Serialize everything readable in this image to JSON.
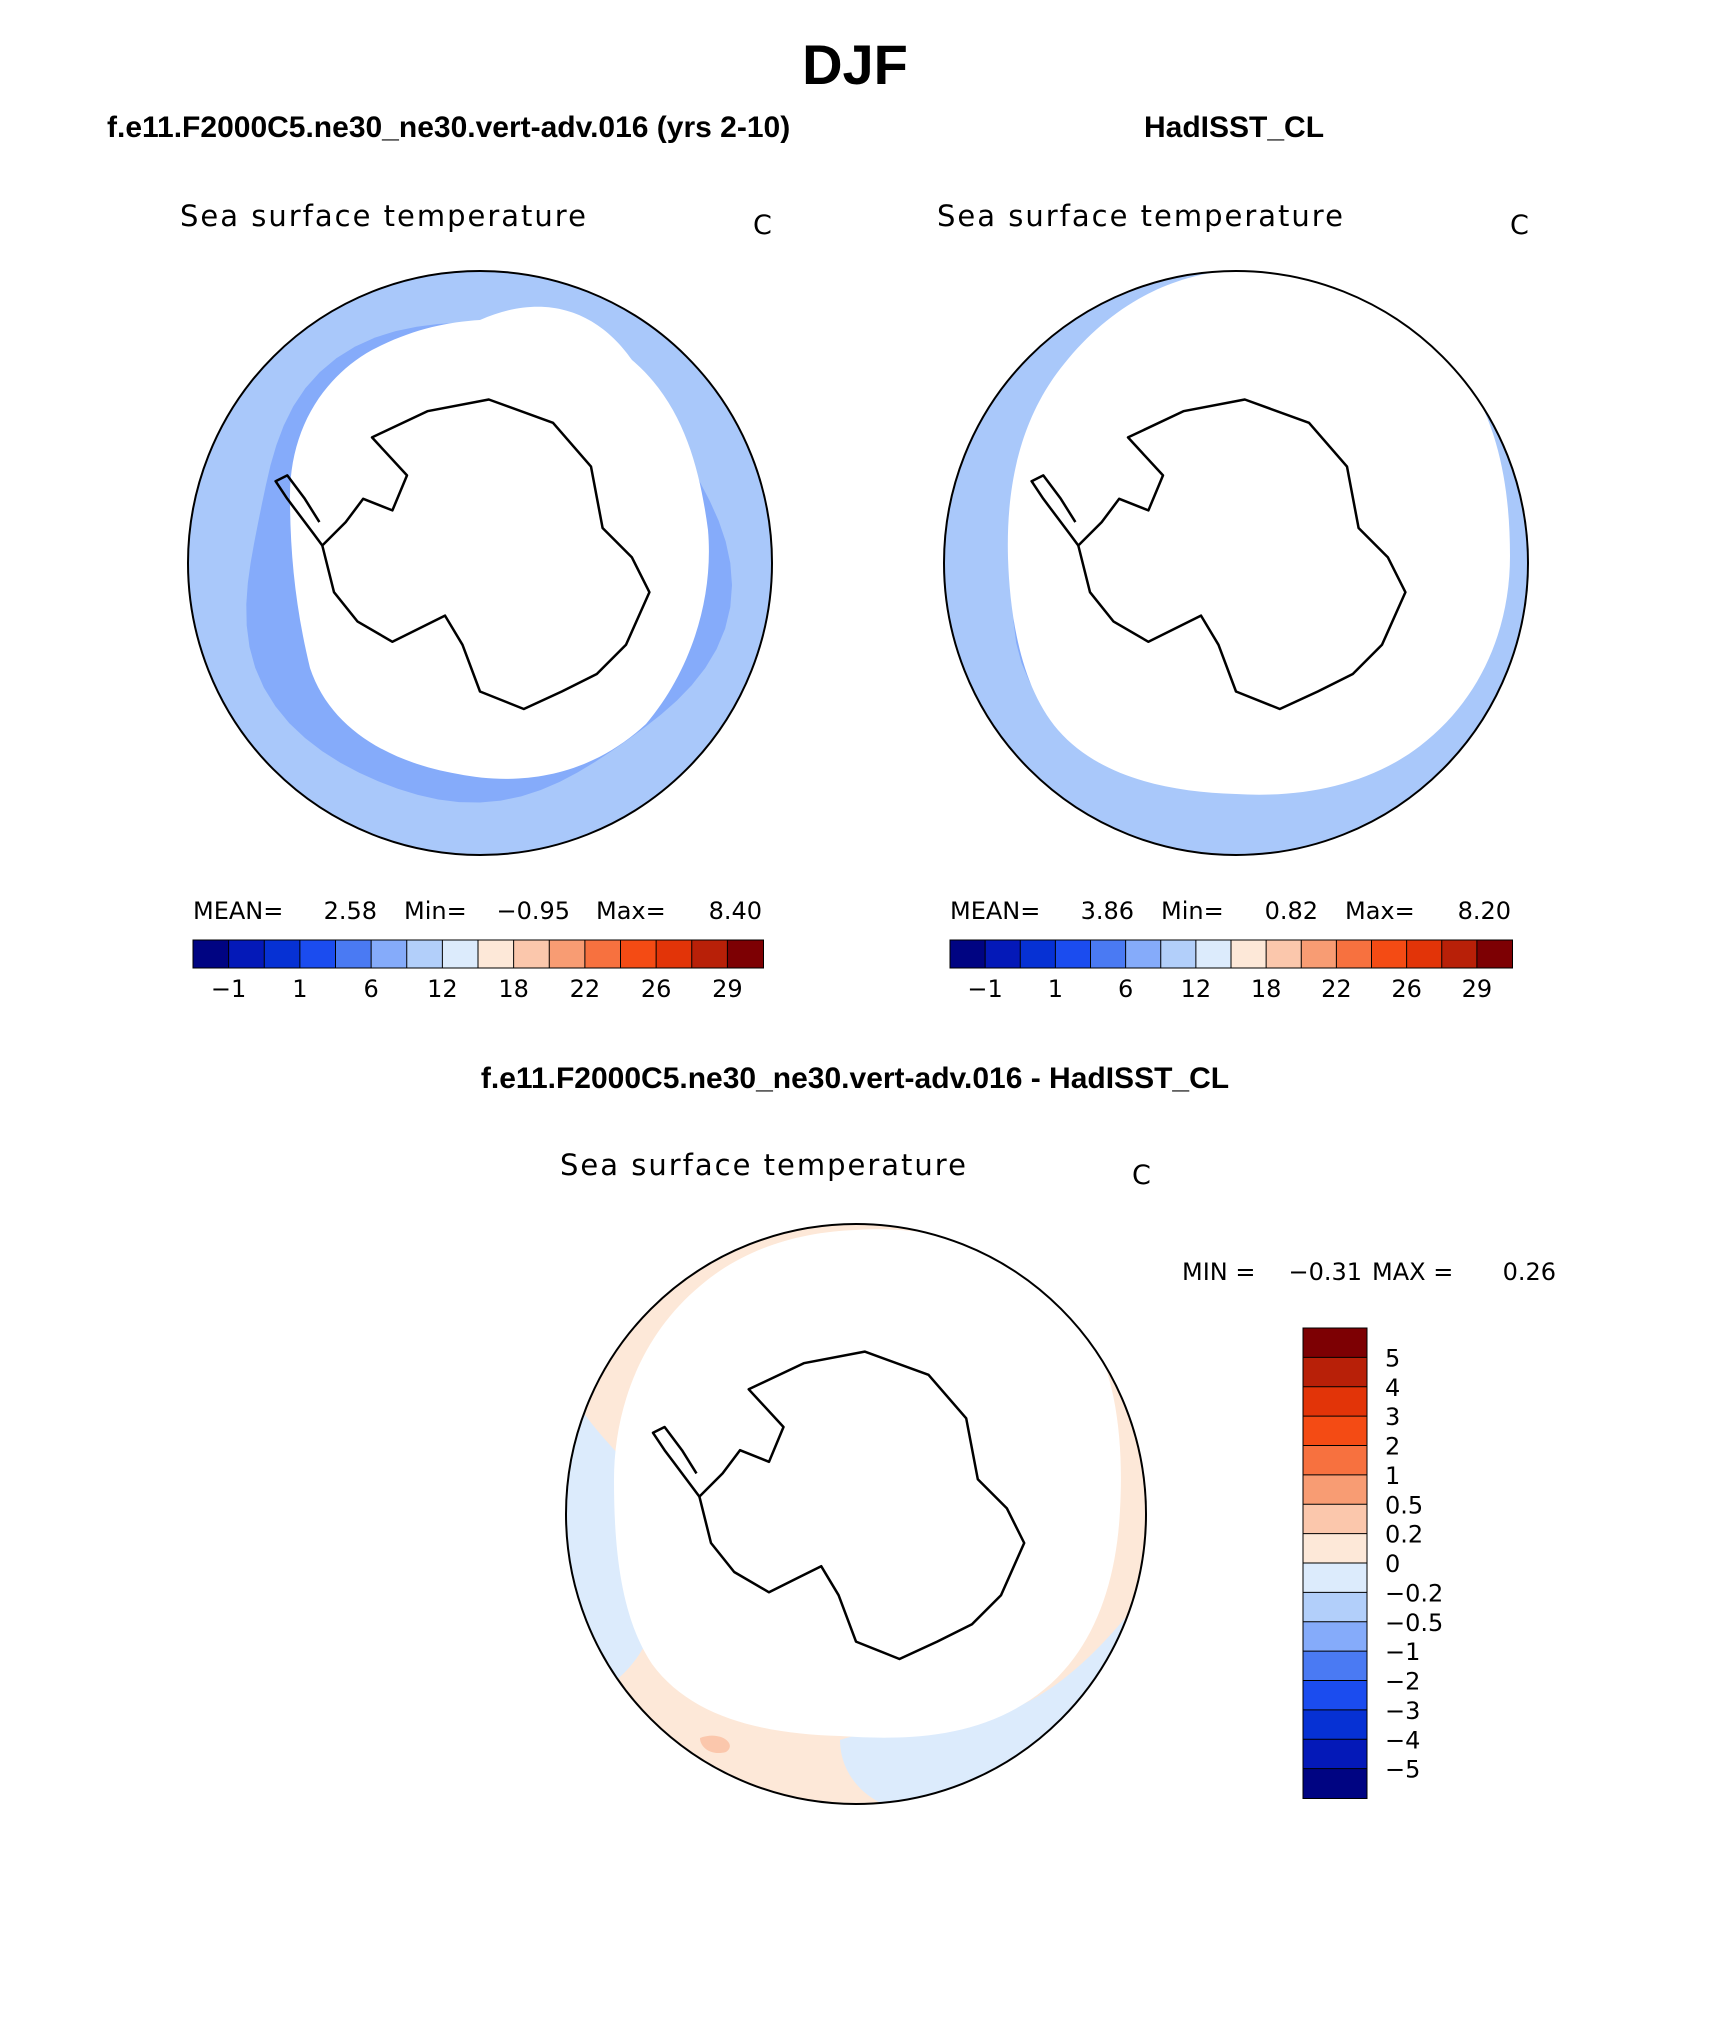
{
  "page": {
    "title": "DJF",
    "colors": {
      "land": "#ffffff",
      "coast": "#000000",
      "frame": "#000000"
    }
  },
  "panels": [
    {
      "id": "model",
      "header": "f.e11.F2000C5.ne30_ne30.vert-adv.016 (yrs 2-10)",
      "field": "Sea surface temperature",
      "units": "C",
      "stats": {
        "mean_label": "MEAN=",
        "mean": "2.58",
        "min_label": "Min=",
        "min": "−0.95",
        "max_label": "Max=",
        "max": "8.40"
      },
      "rings": [
        "#a9c8fa",
        "#85abfa",
        "#4a7af3",
        "#1e4ff0",
        "#0731d6"
      ],
      "ice_edge_deg": [
        -64,
        -56
      ]
    },
    {
      "id": "obs",
      "header": "HadISST_CL",
      "field": "Sea surface temperature",
      "units": "C",
      "stats": {
        "mean_label": "MEAN=",
        "mean": "3.86",
        "min_label": "Min=",
        "min": "0.82",
        "max_label": "Max=",
        "max": "8.20"
      },
      "rings": [
        "#a9c8fa",
        "#85abfa",
        "#4a7af3",
        "#2b5cf2"
      ],
      "ice_edge_deg": [
        -61,
        -51
      ]
    },
    {
      "id": "diff",
      "header": "f.e11.F2000C5.ne30_ne30.vert-adv.016 - HadISST_CL",
      "field": "Sea surface temperature",
      "units": "C",
      "minmax": {
        "min_label": "MIN =",
        "min": "−0.31",
        "max_label": "MAX =",
        "max": "0.26"
      },
      "ice_edge_deg": [
        -61,
        -51
      ]
    }
  ],
  "sst_colorbar": {
    "labels": [
      "−1",
      "1",
      "6",
      "12",
      "18",
      "22",
      "26",
      "29"
    ],
    "colors": [
      "#000482",
      "#0419b8",
      "#0631d4",
      "#1b4cef",
      "#4a7af3",
      "#85abfa",
      "#b2cffa",
      "#dcebfc",
      "#fde8d8",
      "#fbc7ac",
      "#f89c73",
      "#f7713f",
      "#f44b14",
      "#e23408",
      "#b82008",
      "#7d0003"
    ]
  },
  "diff_colorbar": {
    "labels": [
      "5",
      "4",
      "3",
      "2",
      "1",
      "0.5",
      "0.2",
      "0",
      "−0.2",
      "−0.5",
      "−1",
      "−2",
      "−3",
      "−4",
      "−5"
    ],
    "colors": [
      "#7d0003",
      "#b82008",
      "#e23408",
      "#f44b14",
      "#f7713f",
      "#f89c73",
      "#fbc7ac",
      "#fde8d8",
      "#dcebfc",
      "#b2cffa",
      "#85abfa",
      "#4a7af3",
      "#1b4cef",
      "#0631d4",
      "#0419b8",
      "#000482"
    ]
  }
}
